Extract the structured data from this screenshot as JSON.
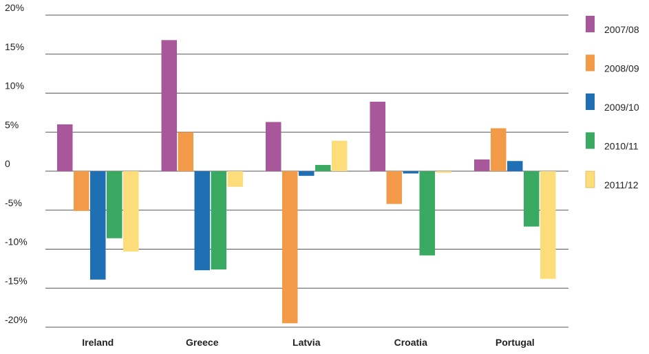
{
  "chart_data": {
    "type": "bar",
    "categories": [
      "Ireland",
      "Greece",
      "Latvia",
      "Croatia",
      "Portugal"
    ],
    "series": [
      {
        "name": "2007/08",
        "color": "#A8579B",
        "values": [
          6.0,
          16.8,
          6.3,
          8.9,
          1.5
        ]
      },
      {
        "name": "2008/09",
        "color": "#F29A47",
        "values": [
          -5.1,
          5.0,
          -19.5,
          -4.2,
          5.5
        ]
      },
      {
        "name": "2009/10",
        "color": "#1F6FB5",
        "values": [
          -13.9,
          -12.7,
          -0.6,
          -0.3,
          1.3
        ]
      },
      {
        "name": "2010/11",
        "color": "#3AAA63",
        "values": [
          -8.6,
          -12.6,
          0.8,
          -10.8,
          -7.1
        ]
      },
      {
        "name": "2011/12",
        "color": "#FDDC7A",
        "values": [
          -10.3,
          -2.0,
          3.9,
          -0.2,
          -13.8
        ]
      }
    ],
    "y_ticks": [
      "20%",
      "15%",
      "10%",
      "5%",
      "0",
      "-5%",
      "-10%",
      "-15%",
      "-20%"
    ],
    "ylim": [
      -20,
      20
    ],
    "grid": true,
    "legend_position": "right"
  }
}
